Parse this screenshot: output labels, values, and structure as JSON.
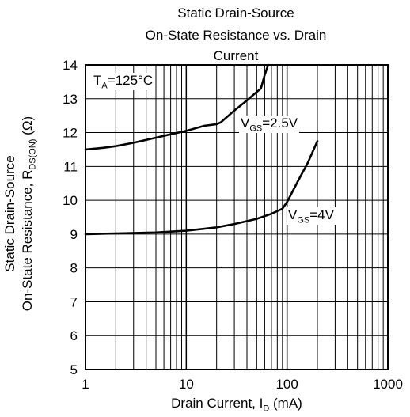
{
  "chart_data": {
    "type": "line",
    "title_lines": [
      "Static Drain-Source",
      "On-State Resistance vs. Drain",
      "Current"
    ],
    "xlabel": "Drain Current, I",
    "xlabel_sub": "D",
    "xlabel_unit": " (mA)",
    "ylabel_line1": "Static Drain-Source",
    "ylabel_line2": "On-State Resistance,  R",
    "ylabel_sub": "DS(ON)",
    "ylabel_unit": " (Ω)",
    "x_scale": "log",
    "xlim": [
      1,
      1000
    ],
    "ylim": [
      5,
      14
    ],
    "x_ticks": [
      "1",
      "10",
      "100",
      "1000"
    ],
    "y_ticks": [
      "5",
      "6",
      "7",
      "8",
      "9",
      "10",
      "11",
      "12",
      "13",
      "14"
    ],
    "grid": true,
    "series": [
      {
        "name": "VGS=2.5V",
        "x": [
          1,
          1.5,
          2,
          3,
          5,
          7,
          10,
          15,
          20,
          22,
          30,
          40,
          50,
          55,
          60,
          65
        ],
        "y": [
          11.5,
          11.55,
          11.6,
          11.7,
          11.85,
          11.95,
          12.05,
          12.2,
          12.25,
          12.3,
          12.65,
          12.95,
          13.2,
          13.3,
          13.7,
          14.0
        ]
      },
      {
        "name": "VGS=4V",
        "x": [
          1,
          2,
          5,
          10,
          20,
          30,
          50,
          70,
          90,
          100,
          130,
          160,
          200
        ],
        "y": [
          9.0,
          9.02,
          9.05,
          9.1,
          9.2,
          9.3,
          9.45,
          9.6,
          9.75,
          9.95,
          10.6,
          11.1,
          11.75
        ]
      }
    ],
    "annotations": {
      "temp_prefix": "T",
      "temp_sub": "A",
      "temp_value": "=125°C",
      "vgs1_prefix": "V",
      "vgs1_sub": "GS",
      "vgs1_value": "=2.5V",
      "vgs2_prefix": "V",
      "vgs2_sub": "GS",
      "vgs2_value": "=4V"
    }
  }
}
